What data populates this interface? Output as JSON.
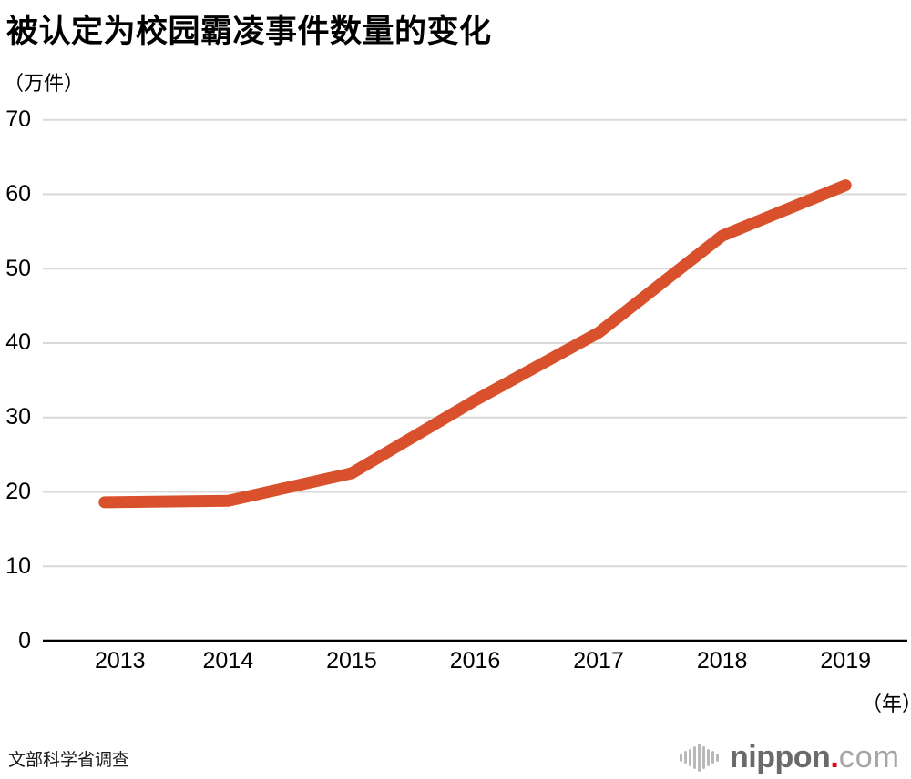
{
  "title": "被认定为校园霸凌事件数量的变化",
  "y_unit_label": "（万件）",
  "x_unit_label": "（年）",
  "source": "文部科学省调查",
  "logo": {
    "mark_icon": "soundwave-bars-icon",
    "name": "nippon",
    "dot": ".",
    "tld": "com",
    "name_color": "#6a6a6a",
    "dot_color": "#e60012",
    "tld_color": "#a6a6a6"
  },
  "chart_data": {
    "type": "line",
    "title": "被认定为校园霸凌事件数量的变化",
    "x": [
      "2013",
      "2014",
      "2015",
      "2016",
      "2017",
      "2018",
      "2019"
    ],
    "values": [
      18.6,
      18.8,
      22.5,
      32.3,
      41.4,
      54.4,
      61.2
    ],
    "xlabel": "（年）",
    "ylabel": "（万件）",
    "ylim": [
      0,
      70
    ],
    "yticks": [
      0,
      10,
      20,
      30,
      40,
      50,
      60,
      70
    ],
    "grid": true,
    "legend": "none",
    "line_color": "#d9502c",
    "gridline_color": "#d9d9d9",
    "axis_color": "#000000"
  }
}
